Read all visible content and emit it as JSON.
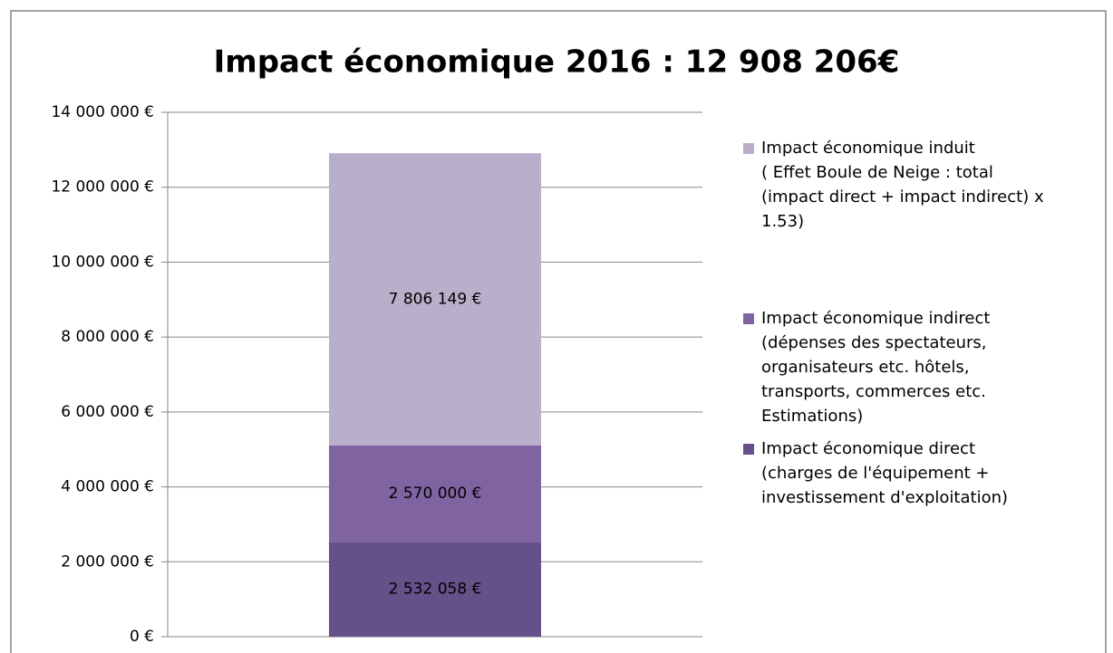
{
  "chart_data": {
    "type": "stacked_bar",
    "title": "Impact économique 2016 : 12 908 206€",
    "categories": [
      null
    ],
    "series": [
      {
        "name": "Impact économique direct\n(charges de l'équipement +\ninvestissement d'exploitation)",
        "color": "#66508a",
        "values": [
          2532058
        ],
        "value_labels": [
          "2 532 058 €"
        ]
      },
      {
        "name": "Impact économique indirect\n(dépenses des spectateurs,\norganisateurs etc. hôtels,\ntransports, commerces etc.\nEstimations)",
        "color": "#8064a2",
        "values": [
          2570000
        ],
        "value_labels": [
          "2 570 000 €"
        ]
      },
      {
        "name": "Impact économique induit\n( Effet Boule de Neige : total\n(impact direct + impact indirect)  x\n1.53)",
        "color": "#b9afcb",
        "values": [
          7806149
        ],
        "value_labels": [
          "7 806 149 €"
        ]
      }
    ],
    "ylim": [
      0,
      14000000
    ],
    "yticks": [
      {
        "value": 0,
        "label": "0 €"
      },
      {
        "value": 2000000,
        "label": "2 000 000 €"
      },
      {
        "value": 4000000,
        "label": "4 000 000 €"
      },
      {
        "value": 6000000,
        "label": "6 000 000 €"
      },
      {
        "value": 8000000,
        "label": "8 000 000 €"
      },
      {
        "value": 10000000,
        "label": "10 000 000 €"
      },
      {
        "value": 12000000,
        "label": "12 000 000 €"
      },
      {
        "value": 14000000,
        "label": "14 000 000 €"
      }
    ],
    "grid": true,
    "legend": "right"
  }
}
